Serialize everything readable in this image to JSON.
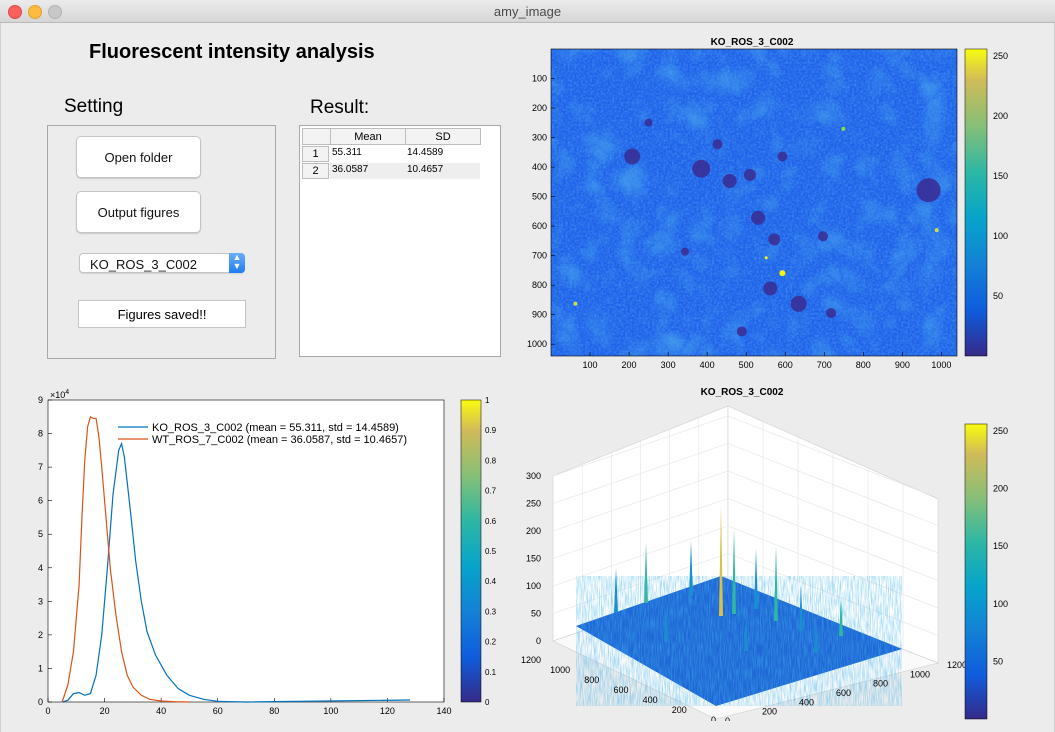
{
  "window": {
    "title": "amy_image"
  },
  "header": {
    "title": "Fluorescent intensity analysis"
  },
  "setting": {
    "label": "Setting",
    "open_folder": "Open folder",
    "output_figures": "Output figures",
    "selected_sample": "KO_ROS_3_C002",
    "status_text": "Figures saved!!"
  },
  "result": {
    "label": "Result:",
    "columns": [
      "Mean",
      "SD"
    ],
    "row_headers": [
      "1",
      "2"
    ],
    "rows": [
      [
        "55.311",
        "14.4589"
      ],
      [
        "36.0587",
        "10.4657"
      ]
    ]
  },
  "chart_data": [
    {
      "type": "heatmap",
      "title": "KO_ROS_3_C002",
      "xticks": [
        100,
        200,
        300,
        400,
        500,
        600,
        700,
        800,
        900,
        1000
      ],
      "yticks": [
        100,
        200,
        300,
        400,
        500,
        600,
        700,
        800,
        900,
        1000
      ],
      "colorbar_ticks": [
        50,
        100,
        150,
        200,
        250
      ],
      "clim": [
        0,
        256
      ]
    },
    {
      "type": "line",
      "title": "",
      "x_exponent_label": "×10",
      "y_exponent": "4",
      "xlim": [
        0,
        140
      ],
      "ylim": [
        0,
        9
      ],
      "xticks": [
        0,
        20,
        40,
        60,
        80,
        100,
        120,
        140
      ],
      "yticks": [
        0,
        1,
        2,
        3,
        4,
        5,
        6,
        7,
        8,
        9
      ],
      "colorbar_ticks": [
        "0",
        "0.1",
        "0.2",
        "0.3",
        "0.4",
        "0.5",
        "0.6",
        "0.7",
        "0.8",
        "0.9",
        "1"
      ],
      "legend_position": "top-right",
      "series": [
        {
          "name": "KO_ROS_3_C002 (mean = 55.311, std = 14.4589)",
          "color": "#0072bd",
          "x": [
            5,
            7,
            9,
            11,
            13,
            15,
            17,
            19,
            21,
            23,
            25,
            26,
            27,
            29,
            31,
            33,
            35,
            38,
            42,
            46,
            50,
            55,
            60,
            65,
            70,
            128
          ],
          "y": [
            0,
            0.05,
            0.25,
            0.28,
            0.2,
            0.25,
            0.8,
            2.0,
            4.0,
            6.2,
            7.5,
            7.7,
            7.3,
            5.8,
            4.2,
            3.0,
            2.1,
            1.4,
            0.8,
            0.4,
            0.2,
            0.08,
            0.02,
            0.01,
            0,
            0.06
          ]
        },
        {
          "name": "WT_ROS_7_C002 (mean = 36.0587, std = 10.4657)",
          "color": "#d95319",
          "x": [
            5,
            7,
            9,
            11,
            12,
            13,
            14,
            15,
            16,
            17,
            18,
            19,
            20,
            21,
            22,
            24,
            26,
            28,
            30,
            33,
            36,
            40,
            45,
            50
          ],
          "y": [
            0,
            0.5,
            1.5,
            3.5,
            5.5,
            7.2,
            8.2,
            8.5,
            8.45,
            8.45,
            7.9,
            7.0,
            6.0,
            5.0,
            4.0,
            2.6,
            1.5,
            0.8,
            0.45,
            0.2,
            0.08,
            0.03,
            0.01,
            0
          ]
        }
      ]
    },
    {
      "type": "surface",
      "title": "KO_ROS_3_C002",
      "zticks": [
        0,
        50,
        100,
        150,
        200,
        250,
        300
      ],
      "xticks": [
        0,
        200,
        400,
        600,
        800,
        1000,
        1200
      ],
      "yticks": [
        0,
        200,
        400,
        600,
        800,
        1000,
        1200
      ],
      "colorbar_ticks": [
        50,
        100,
        150,
        200,
        250
      ]
    }
  ]
}
